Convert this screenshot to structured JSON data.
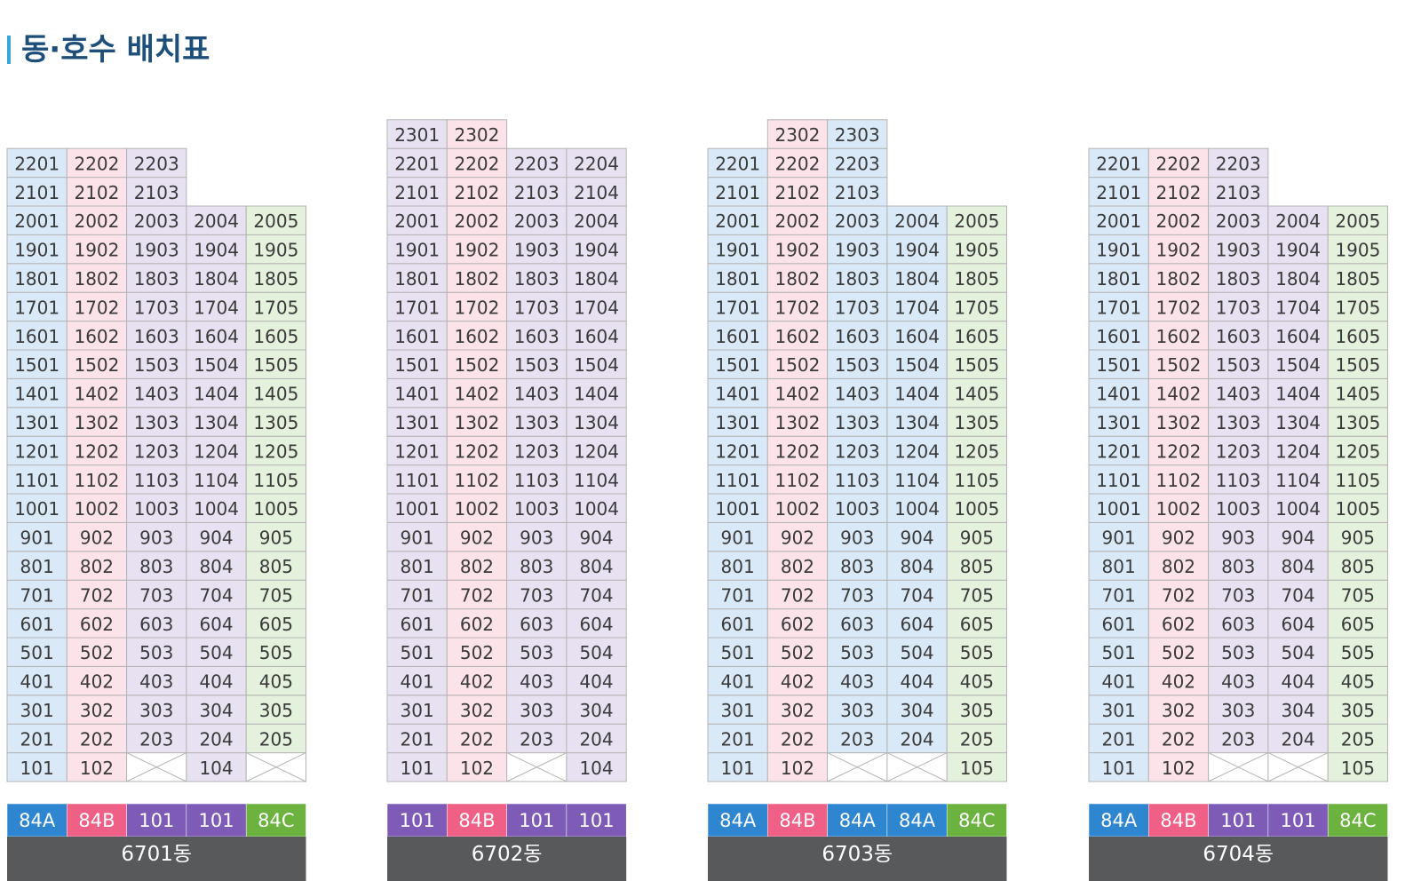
{
  "title": "동·호수 배치표",
  "buildings": [
    {
      "name": "6701동",
      "columns": [
        {
          "type": "84A",
          "color": "#2f86d0",
          "units": [
            101,
            201,
            301,
            401,
            501,
            601,
            701,
            801,
            901,
            1001,
            1101,
            1201,
            1301,
            1401,
            1501,
            1601,
            1701,
            1801,
            1901,
            2001,
            2101,
            2201
          ]
        },
        {
          "type": "84B",
          "color": "#ef5f86",
          "units": [
            102,
            202,
            302,
            402,
            502,
            602,
            702,
            802,
            902,
            1002,
            1102,
            1202,
            1302,
            1402,
            1502,
            1602,
            1702,
            1802,
            1902,
            2002,
            2102,
            2202
          ]
        },
        {
          "type": "101",
          "color": "#7d5bb6",
          "units": [
            null,
            203,
            303,
            403,
            503,
            603,
            703,
            803,
            903,
            1003,
            1103,
            1203,
            1303,
            1403,
            1503,
            1603,
            1703,
            1803,
            1903,
            2003,
            2103,
            2203
          ]
        },
        {
          "type": "101",
          "color": "#7d5bb6",
          "units": [
            104,
            204,
            304,
            404,
            504,
            604,
            704,
            804,
            904,
            1004,
            1104,
            1204,
            1304,
            1404,
            1504,
            1604,
            1704,
            1804,
            1904,
            2004
          ]
        },
        {
          "type": "84C",
          "color": "#6bb23f",
          "units": [
            null,
            205,
            305,
            405,
            505,
            605,
            705,
            805,
            905,
            1005,
            1105,
            1205,
            1305,
            1405,
            1505,
            1605,
            1705,
            1805,
            1905,
            2005
          ]
        }
      ]
    },
    {
      "name": "6702동",
      "columns": [
        {
          "type": "101",
          "color": "#7d5bb6",
          "units": [
            101,
            201,
            301,
            401,
            501,
            601,
            701,
            801,
            901,
            1001,
            1101,
            1201,
            1301,
            1401,
            1501,
            1601,
            1701,
            1801,
            1901,
            2001,
            2101,
            2201,
            2301
          ]
        },
        {
          "type": "84B",
          "color": "#ef5f86",
          "units": [
            102,
            202,
            302,
            402,
            502,
            602,
            702,
            802,
            902,
            1002,
            1102,
            1202,
            1302,
            1402,
            1502,
            1602,
            1702,
            1802,
            1902,
            2002,
            2102,
            2202,
            2302
          ]
        },
        {
          "type": "101",
          "color": "#7d5bb6",
          "units": [
            null,
            203,
            303,
            403,
            503,
            603,
            703,
            803,
            903,
            1003,
            1103,
            1203,
            1303,
            1403,
            1503,
            1603,
            1703,
            1803,
            1903,
            2003,
            2103,
            2203
          ]
        },
        {
          "type": "101",
          "color": "#7d5bb6",
          "units": [
            104,
            204,
            304,
            404,
            504,
            604,
            704,
            804,
            904,
            1004,
            1104,
            1204,
            1304,
            1404,
            1504,
            1604,
            1704,
            1804,
            1904,
            2004,
            2104,
            2204
          ]
        }
      ]
    },
    {
      "name": "6703동",
      "columns": [
        {
          "type": "84A",
          "color": "#2f86d0",
          "units": [
            101,
            201,
            301,
            401,
            501,
            601,
            701,
            801,
            901,
            1001,
            1101,
            1201,
            1301,
            1401,
            1501,
            1601,
            1701,
            1801,
            1901,
            2001,
            2101,
            2201
          ]
        },
        {
          "type": "84B",
          "color": "#ef5f86",
          "units": [
            102,
            202,
            302,
            402,
            502,
            602,
            702,
            802,
            902,
            1002,
            1102,
            1202,
            1302,
            1402,
            1502,
            1602,
            1702,
            1802,
            1902,
            2002,
            2102,
            2202,
            2302
          ]
        },
        {
          "type": "84A",
          "color": "#2f86d0",
          "units": [
            null,
            203,
            303,
            403,
            503,
            603,
            703,
            803,
            903,
            1003,
            1103,
            1203,
            1303,
            1403,
            1503,
            1603,
            1703,
            1803,
            1903,
            2003,
            2103,
            2203,
            2303
          ]
        },
        {
          "type": "84A",
          "color": "#2f86d0",
          "units": [
            null,
            204,
            304,
            404,
            504,
            604,
            704,
            804,
            904,
            1004,
            1104,
            1204,
            1304,
            1404,
            1504,
            1604,
            1704,
            1804,
            1904,
            2004
          ]
        },
        {
          "type": "84C",
          "color": "#6bb23f",
          "units": [
            105,
            205,
            305,
            405,
            505,
            605,
            705,
            805,
            905,
            1005,
            1105,
            1205,
            1305,
            1405,
            1505,
            1605,
            1705,
            1805,
            1905,
            2005
          ]
        }
      ]
    },
    {
      "name": "6704동",
      "columns": [
        {
          "type": "84A",
          "color": "#2f86d0",
          "units": [
            101,
            201,
            301,
            401,
            501,
            601,
            701,
            801,
            901,
            1001,
            1101,
            1201,
            1301,
            1401,
            1501,
            1601,
            1701,
            1801,
            1901,
            2001,
            2101,
            2201
          ]
        },
        {
          "type": "84B",
          "color": "#ef5f86",
          "units": [
            102,
            202,
            302,
            402,
            502,
            602,
            702,
            802,
            902,
            1002,
            1102,
            1202,
            1302,
            1402,
            1502,
            1602,
            1702,
            1802,
            1902,
            2002,
            2102,
            2202
          ]
        },
        {
          "type": "101",
          "color": "#7d5bb6",
          "units": [
            null,
            203,
            303,
            403,
            503,
            603,
            703,
            803,
            903,
            1003,
            1103,
            1203,
            1303,
            1403,
            1503,
            1603,
            1703,
            1803,
            1903,
            2003,
            2103,
            2203
          ]
        },
        {
          "type": "101",
          "color": "#7d5bb6",
          "units": [
            null,
            204,
            304,
            404,
            504,
            604,
            704,
            804,
            904,
            1004,
            1104,
            1204,
            1304,
            1404,
            1504,
            1604,
            1704,
            1804,
            1904,
            2004
          ]
        },
        {
          "type": "84C",
          "color": "#6bb23f",
          "units": [
            105,
            205,
            305,
            405,
            505,
            605,
            705,
            805,
            905,
            1005,
            1105,
            1205,
            1305,
            1405,
            1505,
            1605,
            1705,
            1805,
            1905,
            2005
          ]
        }
      ]
    }
  ]
}
